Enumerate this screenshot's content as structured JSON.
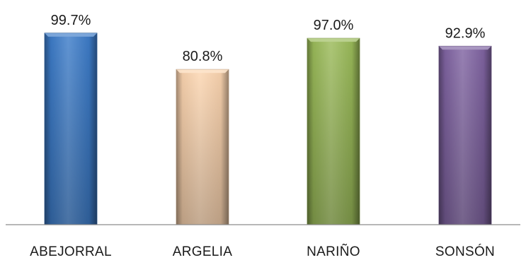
{
  "chart_data": {
    "type": "bar",
    "categories": [
      "ABEJORRAL",
      "ARGELIA",
      "NARIÑO",
      "SONSÓN"
    ],
    "values": [
      99.7,
      80.8,
      97.0,
      92.9
    ],
    "value_labels": [
      "99.7%",
      "80.8%",
      "97.0%",
      "92.9%"
    ],
    "colors": [
      "#3d7cc9",
      "#fcd5b0",
      "#9bbb59",
      "#8064a2"
    ],
    "ylim": [
      0,
      100
    ],
    "grid": false,
    "legend": "none"
  }
}
